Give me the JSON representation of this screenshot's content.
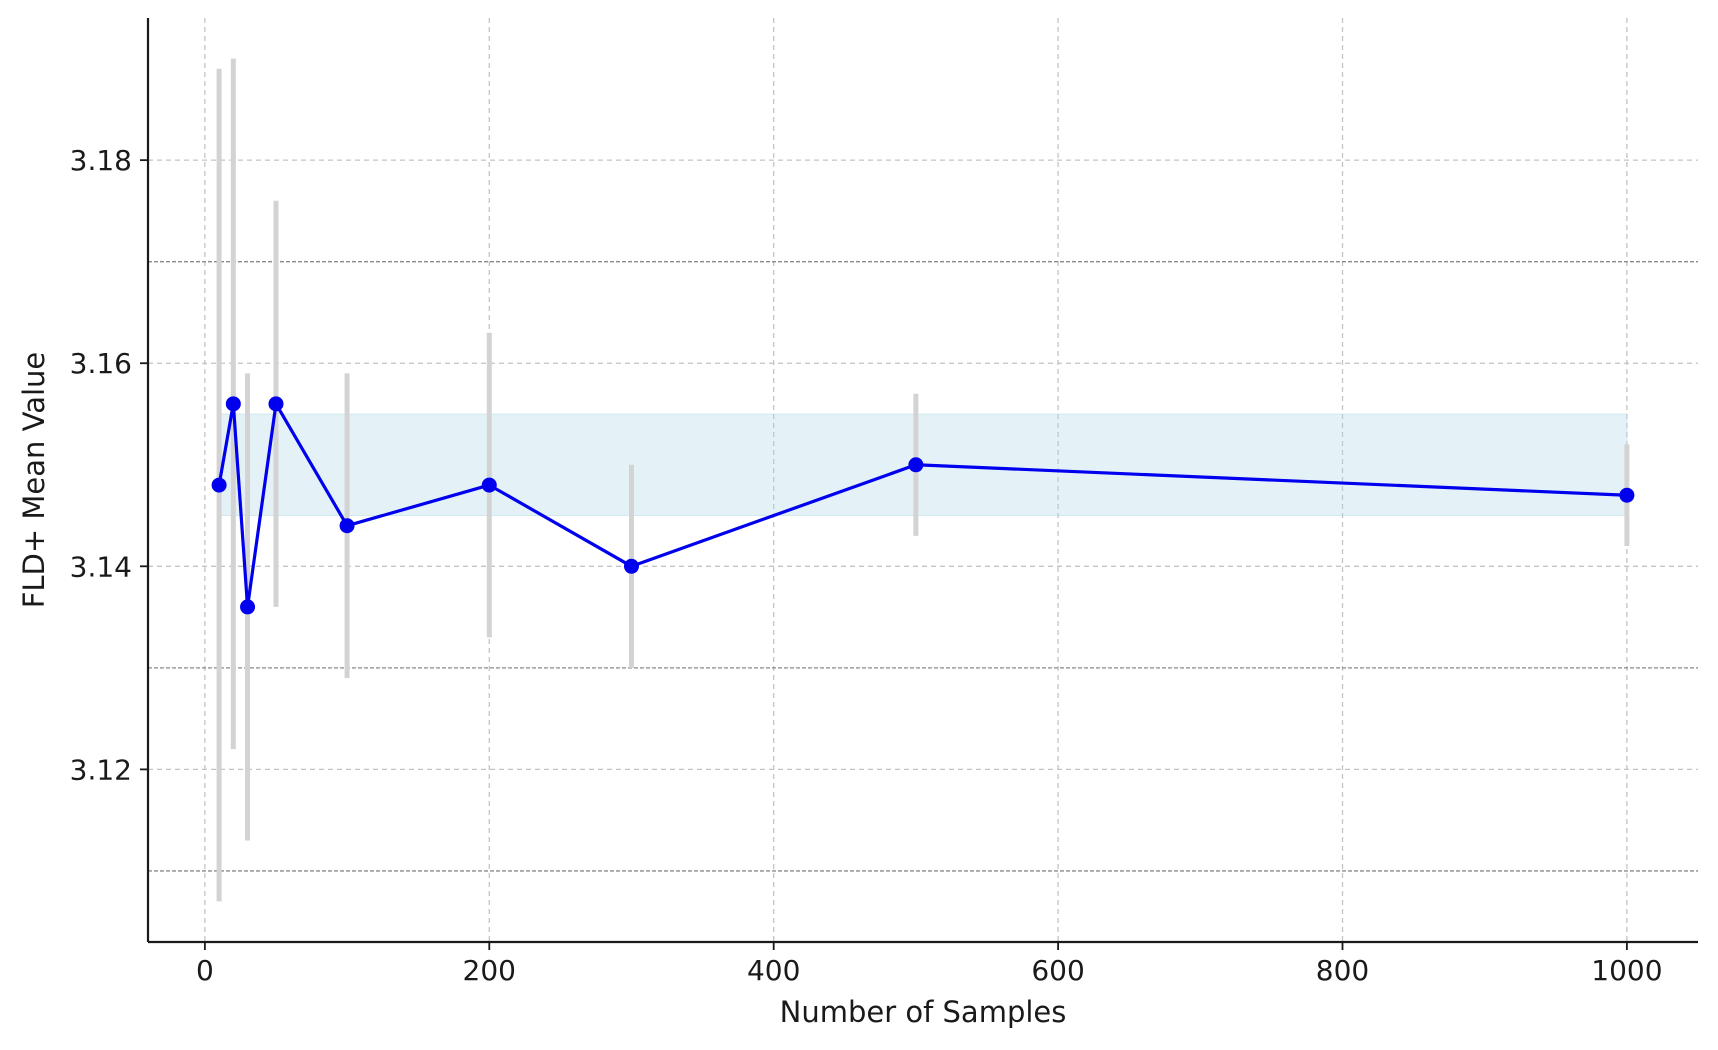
{
  "chart_data": {
    "type": "line",
    "title": "",
    "xlabel": "Number of Samples",
    "ylabel": "FLD+ Mean Value",
    "xlim": [
      -40,
      1050
    ],
    "ylim": [
      3.103,
      3.194
    ],
    "x_ticks": [
      0,
      200,
      400,
      600,
      800,
      1000
    ],
    "x_tick_labels": [
      "0",
      "200",
      "400",
      "600",
      "800",
      "1000"
    ],
    "y_ticks": [
      3.12,
      3.14,
      3.16,
      3.18
    ],
    "y_tick_labels": [
      "3.12",
      "3.14",
      "3.16",
      "3.18"
    ],
    "grid": true,
    "reference_lines": [
      3.11,
      3.13,
      3.17
    ],
    "band": {
      "y_min": 3.145,
      "y_max": 3.155,
      "x_min": 10,
      "x_max": 1000,
      "color": "#add8e6"
    },
    "series": [
      {
        "x": [
          10,
          20,
          30,
          50,
          100,
          200,
          300,
          500,
          1000
        ],
        "y": [
          3.148,
          3.156,
          3.136,
          3.156,
          3.144,
          3.148,
          3.14,
          3.15,
          3.147
        ],
        "error": [
          0.041,
          0.034,
          0.023,
          0.02,
          0.015,
          0.015,
          0.01,
          0.007,
          0.005
        ],
        "color": "#0000ee",
        "error_color": "#d3d3d3"
      }
    ]
  }
}
